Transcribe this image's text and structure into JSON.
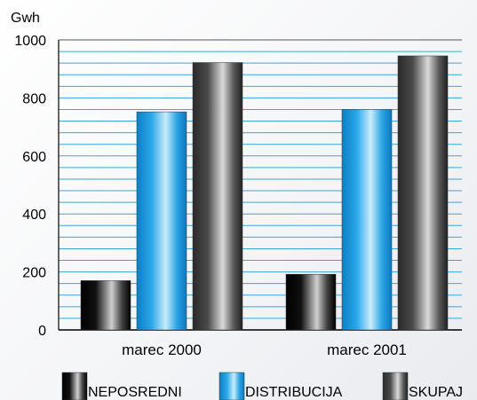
{
  "chart_data": {
    "type": "bar",
    "ylabel": "Gwh",
    "ylim": [
      0,
      1000
    ],
    "yticks": [
      0,
      200,
      400,
      600,
      800,
      1000
    ],
    "grid_step": 40,
    "categories": [
      "marec 2000",
      "marec 2001"
    ],
    "series": [
      {
        "name": "NEPOSREDNI",
        "values": [
          170,
          192
        ]
      },
      {
        "name": "DISTRIBUCIJA",
        "values": [
          752,
          760
        ]
      },
      {
        "name": "SKUPAJ",
        "values": [
          922,
          945
        ]
      }
    ],
    "legend_position": "bottom",
    "grid": true,
    "colors": {
      "grid": "#3aa6dc",
      "axis": "#000000",
      "series": [
        "#000000",
        "#1a9be0",
        "#555555"
      ]
    }
  }
}
